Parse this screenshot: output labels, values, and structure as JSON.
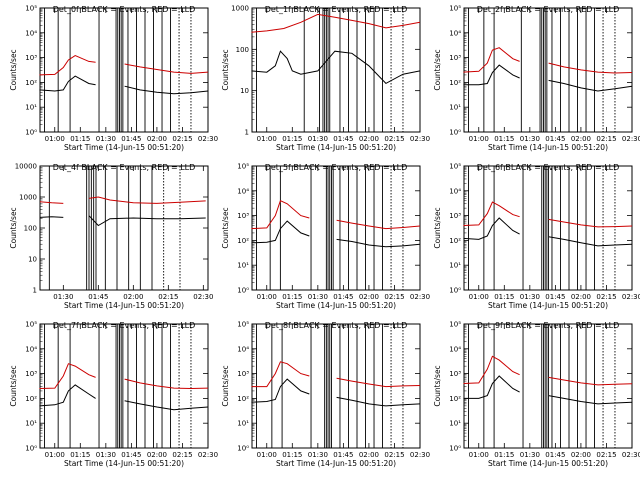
{
  "figure": {
    "background": "#ffffff",
    "colors": {
      "events": "#000000",
      "lld": "#cc0000"
    }
  },
  "chart_data": [
    {
      "type": "line",
      "title": "Det_0f BLACK = Events, RED = LLD",
      "xlabel": "Start Time (14-Jun-15 00:51:20)",
      "ylabel": "Counts/sec",
      "x_ticks": [
        "01:00",
        "01:15",
        "01:30",
        "01:45",
        "02:00",
        "02:15",
        "02:30"
      ],
      "xlim": [
        "00:51:20",
        "02:30:00"
      ],
      "y_scale": "log",
      "ylim": [
        1,
        100000
      ],
      "y_ticks": [
        "10⁰",
        "10¹",
        "10²",
        "10³",
        "10⁴",
        "10⁵"
      ],
      "event_markers": [
        "00:54",
        "01:02",
        "01:09",
        "01:26",
        "01:36",
        "01:37",
        "01:38",
        "01:39",
        "01:40",
        "01:43",
        "01:48",
        "01:53",
        "01:58",
        "02:03",
        "02:08",
        "02:13",
        "02:20"
      ],
      "data_gaps": [
        [
          "01:24",
          "01:36"
        ]
      ],
      "series": [
        {
          "name": "Events",
          "color": "#000000",
          "x": [
            "00:51",
            "01:00",
            "01:05",
            "01:08",
            "01:12",
            "01:20",
            "01:24",
            "01:41",
            "01:50",
            "02:00",
            "02:10",
            "02:20",
            "02:30"
          ],
          "y": [
            50,
            45,
            50,
            110,
            180,
            90,
            80,
            70,
            50,
            40,
            35,
            38,
            45
          ]
        },
        {
          "name": "LLD",
          "color": "#cc0000",
          "x": [
            "00:51",
            "01:00",
            "01:05",
            "01:08",
            "01:12",
            "01:20",
            "01:24",
            "01:41",
            "01:50",
            "02:00",
            "02:10",
            "02:20",
            "02:30"
          ],
          "y": [
            200,
            210,
            400,
            800,
            1200,
            700,
            650,
            550,
            420,
            330,
            260,
            230,
            260
          ]
        }
      ]
    },
    {
      "type": "line",
      "title": "Det_1f BLACK = Events, RED = LLD",
      "xlabel": "Start Time (14-Jun-15 00:51:20)",
      "ylabel": "Counts/sec",
      "x_ticks": [
        "01:00",
        "01:15",
        "01:30",
        "01:45",
        "02:00",
        "02:15",
        "02:30"
      ],
      "xlim": [
        "00:51:20",
        "02:30:00"
      ],
      "y_scale": "log",
      "ylim": [
        1,
        1000
      ],
      "y_ticks": [
        "1",
        "10",
        "100",
        "1000"
      ],
      "event_markers": [
        "00:54",
        "01:22",
        "01:31",
        "01:33",
        "01:34",
        "01:35",
        "01:36",
        "01:37",
        "01:43",
        "01:48",
        "01:53",
        "01:58",
        "02:03",
        "02:08",
        "02:13",
        "02:20"
      ],
      "data_gaps": [],
      "series": [
        {
          "name": "Events",
          "color": "#000000",
          "x": [
            "00:51",
            "01:00",
            "01:05",
            "01:08",
            "01:12",
            "01:15",
            "01:20",
            "01:30",
            "01:40",
            "01:50",
            "02:00",
            "02:10",
            "02:20",
            "02:30"
          ],
          "y": [
            30,
            28,
            40,
            90,
            60,
            30,
            25,
            30,
            90,
            80,
            40,
            15,
            25,
            30
          ]
        },
        {
          "name": "LLD",
          "color": "#cc0000",
          "x": [
            "00:51",
            "01:00",
            "01:10",
            "01:20",
            "01:30",
            "01:40",
            "01:50",
            "02:00",
            "02:10",
            "02:20",
            "02:30"
          ],
          "y": [
            260,
            280,
            320,
            450,
            700,
            600,
            500,
            420,
            330,
            380,
            450
          ]
        }
      ]
    },
    {
      "type": "line",
      "title": "Det_2f BLACK = Events, RED = LLD",
      "xlabel": "Start Time (14-Jun-15 00:51:20)",
      "ylabel": "Counts/sec",
      "x_ticks": [
        "01:00",
        "01:15",
        "01:30",
        "01:45",
        "02:00",
        "02:15",
        "02:30"
      ],
      "xlim": [
        "00:51:20",
        "02:30:00"
      ],
      "y_scale": "log",
      "ylim": [
        1,
        100000
      ],
      "y_ticks": [
        "10⁰",
        "10¹",
        "10²",
        "10³",
        "10⁴",
        "10⁵"
      ],
      "event_markers": [
        "00:54",
        "01:03",
        "01:09",
        "01:25",
        "01:36",
        "01:37",
        "01:38",
        "01:39",
        "01:40",
        "01:43",
        "01:48",
        "01:53",
        "01:58",
        "02:03",
        "02:08",
        "02:13",
        "02:20"
      ],
      "data_gaps": [
        [
          "01:24",
          "01:36"
        ]
      ],
      "series": [
        {
          "name": "Events",
          "color": "#000000",
          "x": [
            "00:51",
            "01:00",
            "01:05",
            "01:08",
            "01:12",
            "01:20",
            "01:24",
            "01:41",
            "01:50",
            "02:00",
            "02:10",
            "02:20",
            "02:30"
          ],
          "y": [
            80,
            80,
            90,
            250,
            500,
            200,
            150,
            120,
            90,
            60,
            45,
            55,
            70
          ]
        },
        {
          "name": "LLD",
          "color": "#cc0000",
          "x": [
            "00:51",
            "01:00",
            "01:05",
            "01:08",
            "01:12",
            "01:20",
            "01:24",
            "01:41",
            "01:50",
            "02:00",
            "02:10",
            "02:20",
            "02:30"
          ],
          "y": [
            260,
            280,
            600,
            2000,
            2500,
            900,
            700,
            600,
            420,
            320,
            260,
            240,
            250
          ]
        }
      ]
    },
    {
      "type": "line",
      "title": "Det_4f BLACK = Events, RED = LLD",
      "xlabel": "Start Time (14-Jun-15 00:51:20)",
      "ylabel": "Counts/sec",
      "x_ticks": [
        "01:30",
        "01:45",
        "02:00",
        "02:15",
        "02:30"
      ],
      "xlim": [
        "01:20:00",
        "02:32:00"
      ],
      "y_scale": "log",
      "ylim": [
        1,
        10000
      ],
      "y_ticks": [
        "1",
        "10",
        "100",
        "1000",
        "10000"
      ],
      "event_markers": [
        "01:24",
        "01:40",
        "01:41",
        "01:42",
        "01:43",
        "01:44",
        "01:48",
        "01:53",
        "01:58",
        "02:03",
        "02:08",
        "02:13",
        "02:20"
      ],
      "data_gaps": [
        [
          "01:31",
          "01:40"
        ]
      ],
      "series": [
        {
          "name": "Events",
          "color": "#000000",
          "x": [
            "01:20",
            "01:25",
            "01:30",
            "01:41",
            "01:45",
            "01:50",
            "02:00",
            "02:10",
            "02:20",
            "02:31"
          ],
          "y": [
            220,
            230,
            220,
            250,
            120,
            200,
            210,
            200,
            200,
            210
          ]
        },
        {
          "name": "LLD",
          "color": "#cc0000",
          "x": [
            "01:20",
            "01:25",
            "01:30",
            "01:41",
            "01:45",
            "01:50",
            "02:00",
            "02:10",
            "02:20",
            "02:31"
          ],
          "y": [
            700,
            650,
            620,
            900,
            1000,
            800,
            650,
            620,
            680,
            750
          ]
        }
      ]
    },
    {
      "type": "line",
      "title": "Det_5f BLACK = Events, RED = LLD",
      "xlabel": "Start Time (14-Jun-15 00:51:20)",
      "ylabel": "Counts/sec",
      "x_ticks": [
        "01:00",
        "01:15",
        "01:30",
        "01:45",
        "02:00",
        "02:15",
        "02:30"
      ],
      "xlim": [
        "00:51:20",
        "02:30:00"
      ],
      "y_scale": "log",
      "ylim": [
        1,
        100000
      ],
      "y_ticks": [
        "10⁰",
        "10¹",
        "10²",
        "10³",
        "10⁴",
        "10⁵"
      ],
      "event_markers": [
        "00:54",
        "01:02",
        "01:08",
        "01:26",
        "01:35",
        "01:36",
        "01:37",
        "01:38",
        "01:39",
        "01:43",
        "01:48",
        "01:53",
        "01:58",
        "02:03",
        "02:08",
        "02:13",
        "02:20"
      ],
      "data_gaps": [
        [
          "01:25",
          "01:35"
        ]
      ],
      "series": [
        {
          "name": "Events",
          "color": "#000000",
          "x": [
            "00:51",
            "01:00",
            "01:05",
            "01:08",
            "01:12",
            "01:20",
            "01:25",
            "01:41",
            "01:50",
            "02:00",
            "02:10",
            "02:20",
            "02:30"
          ],
          "y": [
            80,
            85,
            100,
            300,
            600,
            200,
            150,
            110,
            90,
            65,
            55,
            60,
            70
          ]
        },
        {
          "name": "LLD",
          "color": "#cc0000",
          "x": [
            "00:51",
            "01:00",
            "01:05",
            "01:08",
            "01:12",
            "01:20",
            "01:25",
            "01:41",
            "01:50",
            "02:00",
            "02:10",
            "02:20",
            "02:30"
          ],
          "y": [
            300,
            320,
            1000,
            4000,
            3000,
            1000,
            800,
            650,
            500,
            380,
            300,
            330,
            380
          ]
        }
      ]
    },
    {
      "type": "line",
      "title": "Det_6f BLACK = Events, RED = LLD",
      "xlabel": "Start Time (14-Jun-15 00:51:20)",
      "ylabel": "Counts/sec",
      "x_ticks": [
        "01:00",
        "01:15",
        "01:30",
        "01:45",
        "02:00",
        "02:15",
        "02:30"
      ],
      "xlim": [
        "00:51:20",
        "02:30:00"
      ],
      "y_scale": "log",
      "ylim": [
        1,
        100000
      ],
      "y_ticks": [
        "10⁰",
        "10¹",
        "10²",
        "10³",
        "10⁴",
        "10⁵"
      ],
      "event_markers": [
        "00:54",
        "01:03",
        "01:09",
        "01:26",
        "01:37",
        "01:38",
        "01:39",
        "01:40",
        "01:41",
        "01:43",
        "01:48",
        "01:53",
        "01:58",
        "02:03",
        "02:08",
        "02:13",
        "02:20"
      ],
      "data_gaps": [
        [
          "01:24",
          "01:37"
        ]
      ],
      "series": [
        {
          "name": "Events",
          "color": "#000000",
          "x": [
            "00:51",
            "01:00",
            "01:05",
            "01:08",
            "01:12",
            "01:20",
            "01:24",
            "01:41",
            "01:50",
            "02:00",
            "02:10",
            "02:20",
            "02:30"
          ],
          "y": [
            120,
            110,
            150,
            400,
            800,
            250,
            180,
            140,
            110,
            80,
            60,
            65,
            70
          ]
        },
        {
          "name": "LLD",
          "color": "#cc0000",
          "x": [
            "00:51",
            "01:00",
            "01:05",
            "01:08",
            "01:12",
            "01:20",
            "01:24",
            "01:41",
            "01:50",
            "02:00",
            "02:10",
            "02:20",
            "02:30"
          ],
          "y": [
            400,
            420,
            1200,
            3500,
            2500,
            1100,
            900,
            700,
            550,
            420,
            350,
            360,
            380
          ]
        }
      ]
    },
    {
      "type": "line",
      "title": "Det_7f BLACK = Events, RED = LLD",
      "xlabel": "Start Time (14-Jun-15 00:51:20)",
      "ylabel": "Counts/sec",
      "x_ticks": [
        "01:00",
        "01:15",
        "01:30",
        "01:45",
        "02:00",
        "02:15",
        "02:30"
      ],
      "xlim": [
        "00:51:20",
        "02:30:00"
      ],
      "y_scale": "log",
      "ylim": [
        1,
        100000
      ],
      "y_ticks": [
        "10⁰",
        "10¹",
        "10²",
        "10³",
        "10⁴",
        "10⁵"
      ],
      "event_markers": [
        "00:54",
        "01:02",
        "01:09",
        "01:26",
        "01:36",
        "01:37",
        "01:38",
        "01:39",
        "01:40",
        "01:43",
        "01:48",
        "01:53",
        "01:58",
        "02:03",
        "02:08",
        "02:13",
        "02:20"
      ],
      "data_gaps": [
        [
          "01:24",
          "01:36"
        ]
      ],
      "series": [
        {
          "name": "Events",
          "color": "#000000",
          "x": [
            "00:51",
            "01:00",
            "01:05",
            "01:08",
            "01:12",
            "01:20",
            "01:24",
            "01:41",
            "01:50",
            "02:00",
            "02:10",
            "02:20",
            "02:30"
          ],
          "y": [
            50,
            55,
            70,
            200,
            350,
            150,
            100,
            80,
            60,
            45,
            35,
            40,
            45
          ]
        },
        {
          "name": "LLD",
          "color": "#cc0000",
          "x": [
            "00:51",
            "01:00",
            "01:05",
            "01:08",
            "01:12",
            "01:20",
            "01:24",
            "01:41",
            "01:50",
            "02:00",
            "02:10",
            "02:20",
            "02:30"
          ],
          "y": [
            250,
            260,
            800,
            2500,
            2000,
            900,
            700,
            600,
            420,
            320,
            260,
            250,
            260
          ]
        }
      ]
    },
    {
      "type": "line",
      "title": "Det_8f BLACK = Events, RED = LLD",
      "xlabel": "Start Time (14-Jun-15 00:51:20)",
      "ylabel": "Counts/sec",
      "x_ticks": [
        "01:00",
        "01:15",
        "01:30",
        "01:45",
        "02:00",
        "02:15",
        "02:30"
      ],
      "xlim": [
        "00:51:20",
        "02:30:00"
      ],
      "y_scale": "log",
      "ylim": [
        1,
        100000
      ],
      "y_ticks": [
        "10⁰",
        "10¹",
        "10²",
        "10³",
        "10⁴",
        "10⁵"
      ],
      "event_markers": [
        "00:54",
        "01:03",
        "01:09",
        "01:26",
        "01:34",
        "01:35",
        "01:36",
        "01:37",
        "01:38",
        "01:43",
        "01:48",
        "01:53",
        "01:58",
        "02:03",
        "02:08",
        "02:13",
        "02:20"
      ],
      "data_gaps": [
        [
          "01:25",
          "01:34"
        ]
      ],
      "series": [
        {
          "name": "Events",
          "color": "#000000",
          "x": [
            "00:51",
            "01:00",
            "01:05",
            "01:08",
            "01:12",
            "01:20",
            "01:25",
            "01:41",
            "01:50",
            "02:00",
            "02:10",
            "02:20",
            "02:30"
          ],
          "y": [
            70,
            75,
            90,
            300,
            600,
            200,
            150,
            110,
            85,
            60,
            50,
            55,
            60
          ]
        },
        {
          "name": "LLD",
          "color": "#cc0000",
          "x": [
            "00:51",
            "01:00",
            "01:05",
            "01:08",
            "01:12",
            "01:20",
            "01:25",
            "01:41",
            "01:50",
            "02:00",
            "02:10",
            "02:20",
            "02:30"
          ],
          "y": [
            300,
            300,
            1000,
            3000,
            2500,
            1000,
            800,
            650,
            500,
            380,
            300,
            320,
            330
          ]
        }
      ]
    },
    {
      "type": "line",
      "title": "Det_9f BLACK = Events, RED = LLD",
      "xlabel": "Start Time (14-Jun-15 00:51:20)",
      "ylabel": "Counts/sec",
      "x_ticks": [
        "01:00",
        "01:15",
        "01:30",
        "01:45",
        "02:00",
        "02:15",
        "02:30"
      ],
      "xlim": [
        "00:51:20",
        "02:30:00"
      ],
      "y_scale": "log",
      "ylim": [
        1,
        100000
      ],
      "y_ticks": [
        "10⁰",
        "10¹",
        "10²",
        "10³",
        "10⁴",
        "10⁵"
      ],
      "event_markers": [
        "00:54",
        "01:03",
        "01:09",
        "01:26",
        "01:37",
        "01:38",
        "01:39",
        "01:40",
        "01:41",
        "01:43",
        "01:48",
        "01:53",
        "01:58",
        "02:03",
        "02:08",
        "02:13",
        "02:20"
      ],
      "data_gaps": [
        [
          "01:24",
          "01:37"
        ]
      ],
      "series": [
        {
          "name": "Events",
          "color": "#000000",
          "x": [
            "00:51",
            "01:00",
            "01:05",
            "01:08",
            "01:12",
            "01:20",
            "01:24",
            "01:41",
            "01:50",
            "02:00",
            "02:10",
            "02:20",
            "02:30"
          ],
          "y": [
            100,
            100,
            130,
            400,
            800,
            250,
            180,
            130,
            100,
            75,
            60,
            65,
            70
          ]
        },
        {
          "name": "LLD",
          "color": "#cc0000",
          "x": [
            "00:51",
            "01:00",
            "01:05",
            "01:08",
            "01:12",
            "01:20",
            "01:24",
            "01:41",
            "01:50",
            "02:00",
            "02:10",
            "02:20",
            "02:30"
          ],
          "y": [
            400,
            420,
            1500,
            5000,
            3500,
            1200,
            900,
            700,
            550,
            420,
            350,
            370,
            390
          ]
        }
      ]
    }
  ]
}
